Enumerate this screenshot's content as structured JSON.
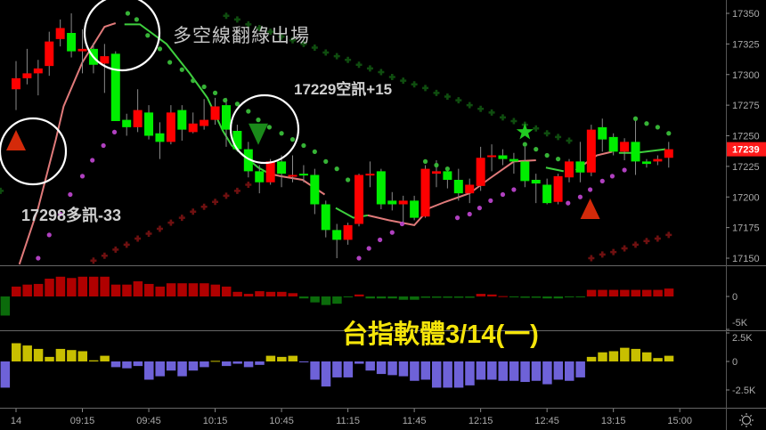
{
  "chart_data": {
    "type": "candlestick",
    "price_axis": {
      "ticks": [
        17350,
        17325,
        17300,
        17275,
        17250,
        17225,
        17200,
        17175,
        17150
      ],
      "range": [
        17140,
        17360
      ],
      "last_price": "17239",
      "last_price_color": "#ff1a1a"
    },
    "time_axis": {
      "ticks": [
        {
          "idx": 1,
          "label": "14"
        },
        {
          "idx": 7,
          "label": "09:15"
        },
        {
          "idx": 13,
          "label": "09:45"
        },
        {
          "idx": 19,
          "label": "10:15"
        },
        {
          "idx": 25,
          "label": "10:45"
        },
        {
          "idx": 31,
          "label": "11:15"
        },
        {
          "idx": 37,
          "label": "11:45"
        },
        {
          "idx": 43,
          "label": "12:15"
        },
        {
          "idx": 49,
          "label": "12:45"
        },
        {
          "idx": 55,
          "label": "13:15"
        },
        {
          "idx": 61,
          "label": "15:00"
        }
      ]
    },
    "colors": {
      "up": "#ff0000",
      "down": "#00ee00",
      "pane1_pos": "#b00000",
      "pane1_neg": "#0b6b0b",
      "pane2_pos": "#c8bf00",
      "pane2_neg": "#6e62d8",
      "upper_line": "#3ecf3e",
      "lower_line": "#e07a7a",
      "green_dots": "#36b336",
      "magenta_dots": "#b040c0",
      "green_crosses": "#0f4d0f",
      "red_crosses": "#6e1010"
    },
    "candles_ohlc": [
      [
        17288,
        17311,
        17271,
        17297
      ],
      [
        17297,
        17321,
        17292,
        17301
      ],
      [
        17301,
        17312,
        17283,
        17305
      ],
      [
        17307,
        17335,
        17299,
        17327
      ],
      [
        17329,
        17345,
        17323,
        17338
      ],
      [
        17334,
        17350,
        17314,
        17319
      ],
      [
        17319,
        17337,
        17301,
        17321
      ],
      [
        17321,
        17326,
        17301,
        17308
      ],
      [
        17309,
        17325,
        17285,
        17315
      ],
      [
        17317,
        17319,
        17262,
        17262
      ],
      [
        17263,
        17268,
        17250,
        17257
      ],
      [
        17257,
        17288,
        17253,
        17271
      ],
      [
        17269,
        17275,
        17247,
        17250
      ],
      [
        17252,
        17261,
        17231,
        17245
      ],
      [
        17245,
        17275,
        17243,
        17269
      ],
      [
        17271,
        17275,
        17246,
        17255
      ],
      [
        17253,
        17269,
        17252,
        17260
      ],
      [
        17258,
        17280,
        17255,
        17263
      ],
      [
        17263,
        17281,
        17259,
        17274
      ],
      [
        17275,
        17281,
        17241,
        17255
      ],
      [
        17254,
        17259,
        17237,
        17239
      ],
      [
        17239,
        17245,
        17216,
        17221
      ],
      [
        17221,
        17226,
        17203,
        17212
      ],
      [
        17212,
        17231,
        17210,
        17229
      ],
      [
        17229,
        17234,
        17208,
        17219
      ],
      [
        17217,
        17234,
        17212,
        17218
      ],
      [
        17219,
        17226,
        17212,
        17218
      ],
      [
        17218,
        17223,
        17186,
        17194
      ],
      [
        17194,
        17197,
        17167,
        17173
      ],
      [
        17173,
        17178,
        17150,
        17165
      ],
      [
        17165,
        17179,
        17161,
        17177
      ],
      [
        17178,
        17219,
        17176,
        17218
      ],
      [
        17218,
        17229,
        17208,
        17219
      ],
      [
        17221,
        17223,
        17190,
        17194
      ],
      [
        17197,
        17204,
        17189,
        17194
      ],
      [
        17194,
        17201,
        17179,
        17197
      ],
      [
        17197,
        17201,
        17181,
        17183
      ],
      [
        17184,
        17226,
        17183,
        17223
      ],
      [
        17219,
        17230,
        17208,
        17221
      ],
      [
        17221,
        17224,
        17207,
        17214
      ],
      [
        17214,
        17223,
        17197,
        17203
      ],
      [
        17203,
        17215,
        17195,
        17210
      ],
      [
        17209,
        17241,
        17205,
        17232
      ],
      [
        17233,
        17243,
        17221,
        17234
      ],
      [
        17234,
        17239,
        17226,
        17231
      ],
      [
        17231,
        17236,
        17219,
        17229
      ],
      [
        17229,
        17241,
        17208,
        17213
      ],
      [
        17214,
        17219,
        17195,
        17211
      ],
      [
        17210,
        17215,
        17194,
        17195
      ],
      [
        17196,
        17219,
        17194,
        17217
      ],
      [
        17216,
        17231,
        17212,
        17229
      ],
      [
        17229,
        17245,
        17212,
        17220
      ],
      [
        17220,
        17259,
        17217,
        17255
      ],
      [
        17257,
        17264,
        17237,
        17247
      ],
      [
        17249,
        17252,
        17234,
        17237
      ],
      [
        17237,
        17248,
        17230,
        17245
      ],
      [
        17245,
        17264,
        17218,
        17229
      ],
      [
        17229,
        17231,
        17224,
        17227
      ],
      [
        17229,
        17234,
        17226,
        17231
      ],
      [
        17232,
        17245,
        17224,
        17239
      ]
    ],
    "line_segments": [
      {
        "color": "lower_line",
        "points": [
          [
            1.3,
            17145
          ],
          [
            3,
            17191
          ],
          [
            4.6,
            17247
          ],
          [
            5.3,
            17274
          ],
          [
            7,
            17310
          ],
          [
            9,
            17339
          ],
          [
            10,
            17342
          ]
        ]
      },
      {
        "color": "upper_line",
        "points": [
          [
            10.8,
            17341
          ],
          [
            12.2,
            17341
          ],
          [
            14.6,
            17325
          ],
          [
            16.7,
            17301
          ],
          [
            18.3,
            17281
          ],
          [
            19.7,
            17254
          ],
          [
            20.5,
            17242
          ],
          [
            22.9,
            17224
          ],
          [
            23.9,
            17219
          ]
        ]
      },
      {
        "color": "lower_line",
        "points": [
          [
            23.9,
            17219
          ],
          [
            24.9,
            17217
          ],
          [
            26.9,
            17214
          ],
          [
            28.9,
            17202
          ]
        ]
      },
      {
        "color": "upper_line",
        "points": [
          [
            29.9,
            17191
          ],
          [
            31.5,
            17183
          ],
          [
            32.8,
            17185
          ]
        ]
      },
      {
        "color": "lower_line",
        "points": [
          [
            32.8,
            17185
          ],
          [
            34.7,
            17181
          ],
          [
            37,
            17177
          ],
          [
            38.4,
            17191
          ],
          [
            39.8,
            17196
          ],
          [
            42,
            17203
          ],
          [
            43.8,
            17215
          ],
          [
            46,
            17229
          ],
          [
            48,
            17230
          ]
        ]
      },
      {
        "color": "upper_line",
        "points": [
          [
            48.9,
            17224
          ],
          [
            50.5,
            17221
          ]
        ]
      },
      {
        "color": "lower_line",
        "points": [
          [
            51.6,
            17222
          ],
          [
            53.5,
            17234
          ],
          [
            54.9,
            17237
          ]
        ]
      },
      {
        "color": "upper_line",
        "points": [
          [
            55.5,
            17236
          ],
          [
            57,
            17236
          ],
          [
            59.7,
            17239
          ]
        ]
      }
    ],
    "green_dots": [
      [
        11.1,
        17350
      ],
      [
        11.9,
        17345
      ],
      [
        12.9,
        17332
      ],
      [
        14,
        17321
      ],
      [
        14.9,
        17310
      ],
      [
        16,
        17304
      ],
      [
        17,
        17295
      ],
      [
        18,
        17290
      ],
      [
        19,
        17285
      ],
      [
        19.9,
        17279
      ],
      [
        21,
        17276
      ],
      [
        22,
        17270
      ],
      [
        22.9,
        17263
      ],
      [
        23.9,
        17257
      ],
      [
        25,
        17252
      ],
      [
        26,
        17247
      ],
      [
        27,
        17242
      ],
      [
        28,
        17237
      ],
      [
        29,
        17229
      ],
      [
        30,
        17223
      ],
      [
        31,
        17214
      ],
      [
        38,
        17229
      ],
      [
        39,
        17226
      ],
      [
        40,
        17223
      ],
      [
        47,
        17243
      ],
      [
        48,
        17239
      ],
      [
        49,
        17234
      ],
      [
        50,
        17231
      ],
      [
        57,
        17264
      ],
      [
        58,
        17260
      ],
      [
        59,
        17257
      ],
      [
        60,
        17252
      ]
    ],
    "magenta_dots": [
      [
        3,
        17150
      ],
      [
        4,
        17169
      ],
      [
        5,
        17186
      ],
      [
        5.9,
        17202
      ],
      [
        7,
        17217
      ],
      [
        7.9,
        17230
      ],
      [
        8.9,
        17242
      ],
      [
        9.9,
        17253
      ],
      [
        32,
        17150
      ],
      [
        32.9,
        17158
      ],
      [
        33.9,
        17165
      ],
      [
        35,
        17171
      ],
      [
        35.9,
        17178
      ],
      [
        40.9,
        17183
      ],
      [
        42,
        17186
      ],
      [
        42.9,
        17191
      ],
      [
        43.9,
        17197
      ],
      [
        45,
        17202
      ],
      [
        46,
        17206
      ],
      [
        50.9,
        17195
      ],
      [
        52,
        17200
      ],
      [
        52.9,
        17206
      ],
      [
        54,
        17213
      ],
      [
        54.9,
        17217
      ],
      [
        56,
        17222
      ]
    ],
    "green_crosses": [
      [
        -0.4,
        17205
      ],
      [
        20,
        17348
      ],
      [
        21,
        17345
      ],
      [
        22,
        17341
      ],
      [
        23,
        17338
      ],
      [
        24,
        17335
      ],
      [
        25,
        17331
      ],
      [
        26,
        17328
      ],
      [
        27,
        17325
      ],
      [
        28,
        17322
      ],
      [
        29,
        17318
      ],
      [
        30,
        17315
      ],
      [
        31,
        17312
      ],
      [
        32,
        17308
      ],
      [
        33,
        17305
      ],
      [
        34,
        17302
      ],
      [
        35,
        17298
      ],
      [
        36,
        17295
      ],
      [
        37,
        17292
      ],
      [
        38,
        17289
      ],
      [
        39,
        17285
      ],
      [
        40,
        17282
      ],
      [
        41,
        17279
      ],
      [
        42,
        17275
      ],
      [
        43,
        17272
      ],
      [
        44,
        17269
      ],
      [
        45,
        17265
      ],
      [
        46,
        17262
      ],
      [
        47,
        17259
      ],
      [
        48,
        17256
      ],
      [
        49,
        17252
      ],
      [
        50,
        17249
      ],
      [
        51,
        17246
      ]
    ],
    "red_crosses": [
      [
        8,
        17148
      ],
      [
        9,
        17152
      ],
      [
        10,
        17157
      ],
      [
        11,
        17161
      ],
      [
        12,
        17166
      ],
      [
        13,
        17170
      ],
      [
        14,
        17174
      ],
      [
        15,
        17179
      ],
      [
        16,
        17183
      ],
      [
        17,
        17188
      ],
      [
        18,
        17192
      ],
      [
        19,
        17196
      ],
      [
        20,
        17201
      ],
      [
        21,
        17205
      ],
      [
        22,
        17210
      ],
      [
        53,
        17150
      ],
      [
        54,
        17153
      ],
      [
        55,
        17155
      ],
      [
        56,
        17158
      ],
      [
        57,
        17161
      ],
      [
        58,
        17164
      ],
      [
        59,
        17166
      ],
      [
        60,
        17169
      ]
    ],
    "signals": [
      {
        "type": "buy-triangle",
        "idx": 1,
        "price": 17246,
        "color": "#d42a0a"
      },
      {
        "type": "sell-triangle",
        "idx": 22.9,
        "price": 17252,
        "color": "#1a8a1a"
      },
      {
        "type": "star",
        "idx": 47,
        "price": 17253,
        "color": "#22cc22"
      },
      {
        "type": "buy-triangle",
        "idx": 52.9,
        "price": 17190,
        "color": "#d42a0a"
      }
    ],
    "pane1": {
      "ticks": [
        {
          "v": 0,
          "label": "0"
        },
        {
          "v": -5,
          "label": "-5K"
        }
      ],
      "values": [
        -2.9,
        1.5,
        1.8,
        1.9,
        2.7,
        3.0,
        2.8,
        3.0,
        3.0,
        3.0,
        1.8,
        1.8,
        2.3,
        1.9,
        1.5,
        2.0,
        2.0,
        2.0,
        2.0,
        1.8,
        1.5,
        0.7,
        0.4,
        0.8,
        0.7,
        0.7,
        0.5,
        -0.3,
        -0.9,
        -1.3,
        -1.1,
        -0.1,
        0.3,
        -0.3,
        -0.3,
        -0.3,
        -0.5,
        -0.5,
        -0.2,
        -0.2,
        -0.2,
        -0.2,
        -0.2,
        0.4,
        0.3,
        0.05,
        -0.1,
        -0.2,
        -0.2,
        -0.3,
        -0.3,
        -0.1,
        -0.1,
        1.0,
        1.0,
        1.0,
        1.0,
        1.0,
        1.0,
        1.0,
        1.2
      ]
    },
    "pane2": {
      "ticks": [
        {
          "v": 2.5,
          "label": "2.5K"
        },
        {
          "v": 0,
          "label": "0"
        },
        {
          "v": -2.5,
          "label": "-2.5K"
        }
      ],
      "values": [
        -2.3,
        1.6,
        1.4,
        1.1,
        0.4,
        1.1,
        1.0,
        0.9,
        0.1,
        0.5,
        -0.5,
        -0.6,
        -0.4,
        -1.6,
        -1.3,
        -0.8,
        -1.3,
        -0.8,
        -0.5,
        0.05,
        -0.4,
        -0.2,
        -0.5,
        -0.3,
        0.5,
        0.4,
        0.5,
        -0.05,
        -1.6,
        -2.2,
        -1.4,
        -1.4,
        -0.2,
        -0.8,
        -1.1,
        -1.2,
        -1.3,
        -1.7,
        -1.6,
        -2.3,
        -2.3,
        -2.3,
        -2.1,
        -1.6,
        -1.6,
        -1.7,
        -1.7,
        -1.8,
        -1.7,
        -2.0,
        -1.6,
        -1.7,
        -1.4,
        0.4,
        0.8,
        0.9,
        1.2,
        1.1,
        0.8,
        0.3,
        0.5
      ]
    }
  },
  "annotations": {
    "exit_note": "多空線翻綠出場",
    "short_signal": "17229空訊+15",
    "long_signal": "17298多訊-33",
    "title": "台指軟體3/14(一)"
  },
  "icons": {
    "settings": "sun-gear-icon"
  }
}
